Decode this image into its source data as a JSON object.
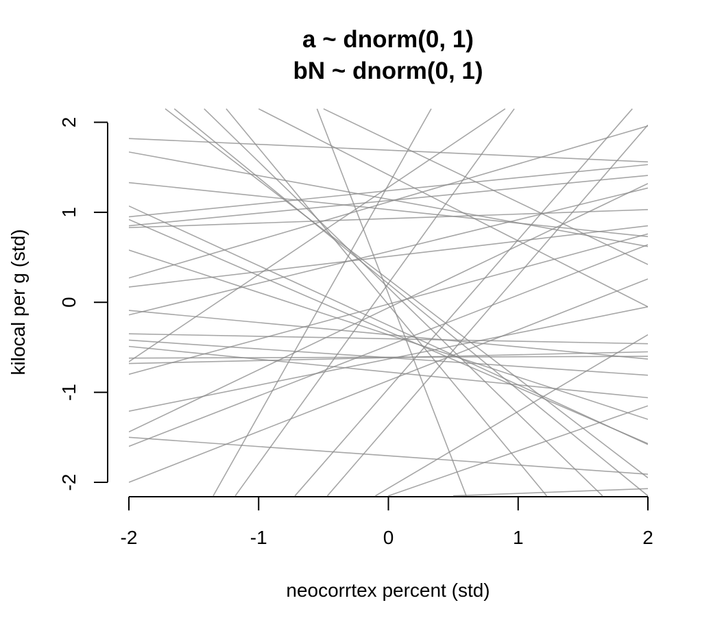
{
  "chart_data": {
    "type": "line",
    "title_lines": [
      "a ~ dnorm(0, 1)",
      "bN ~ dnorm(0, 1)"
    ],
    "xlabel": "neocorrtex percent (std)",
    "ylabel": "kilocal per g (std)",
    "xlim": [
      -2,
      2
    ],
    "ylim": [
      -2.15,
      2.15
    ],
    "x_ticks": [
      "-2",
      "-1",
      "0",
      "1",
      "2"
    ],
    "y_ticks": [
      "-2",
      "-1",
      "0",
      "1",
      "2"
    ],
    "line_color": "#888888",
    "line_opacity": 0.75,
    "grid": false,
    "legend": "none",
    "lines": [
      {
        "x": [
          -2,
          2
        ],
        "y": [
          1.82,
          1.56
        ]
      },
      {
        "x": [
          -2,
          2
        ],
        "y": [
          1.67,
          0.62
        ]
      },
      {
        "x": [
          -2,
          2
        ],
        "y": [
          1.33,
          0.73
        ]
      },
      {
        "x": [
          -2,
          2
        ],
        "y": [
          0.95,
          1.53
        ]
      },
      {
        "x": [
          -2,
          2
        ],
        "y": [
          0.85,
          1.41
        ]
      },
      {
        "x": [
          -2,
          2
        ],
        "y": [
          0.83,
          1.03
        ]
      },
      {
        "x": [
          -2,
          2
        ],
        "y": [
          0.27,
          1.96
        ]
      },
      {
        "x": [
          -2,
          2
        ],
        "y": [
          0.17,
          0.85
        ]
      },
      {
        "x": [
          -2,
          2
        ],
        "y": [
          -0.09,
          -0.63
        ]
      },
      {
        "x": [
          -2,
          2
        ],
        "y": [
          -0.35,
          -0.46
        ]
      },
      {
        "x": [
          -2,
          2
        ],
        "y": [
          -0.42,
          -0.81
        ]
      },
      {
        "x": [
          -2,
          2
        ],
        "y": [
          -0.49,
          -1.06
        ]
      },
      {
        "x": [
          -2,
          2
        ],
        "y": [
          -0.62,
          -0.6
        ]
      },
      {
        "x": [
          -2,
          2
        ],
        "y": [
          -0.68,
          -0.55
        ]
      },
      {
        "x": [
          -2,
          2
        ],
        "y": [
          -0.8,
          0.76
        ]
      },
      {
        "x": [
          -2,
          2
        ],
        "y": [
          -1.21,
          -0.05
        ]
      },
      {
        "x": [
          -2,
          2
        ],
        "y": [
          -1.5,
          -1.91
        ]
      },
      {
        "x": [
          -2,
          2
        ],
        "y": [
          -1.6,
          0.64
        ]
      },
      {
        "x": [
          -2,
          2
        ],
        "y": [
          -1.44,
          1.32
        ]
      },
      {
        "x": [
          -2,
          2
        ],
        "y": [
          -2.0,
          0.26
        ]
      },
      {
        "x": [
          -2,
          2
        ],
        "y": [
          1.07,
          -1.58
        ]
      },
      {
        "x": [
          -2,
          2
        ],
        "y": [
          0.92,
          -1.57
        ]
      },
      {
        "x": [
          -2,
          2
        ],
        "y": [
          0.58,
          -1.3
        ]
      },
      {
        "x": [
          -2,
          2
        ],
        "y": [
          -0.14,
          1.27
        ]
      },
      {
        "x": [
          -0.1,
          2
        ],
        "y": [
          -2.15,
          -0.36
        ]
      },
      {
        "x": [
          0,
          2
        ],
        "y": [
          -2.15,
          -1.15
        ]
      },
      {
        "x": [
          0.5,
          2
        ],
        "y": [
          -2.15,
          -2.07
        ]
      },
      {
        "x": [
          -2,
          0.9
        ],
        "y": [
          -0.66,
          2.15
        ]
      },
      {
        "x": [
          -1.65,
          2
        ],
        "y": [
          2.15,
          -2.15
        ]
      },
      {
        "x": [
          -1.42,
          1.65
        ],
        "y": [
          2.15,
          -2.15
        ]
      },
      {
        "x": [
          -1.25,
          1.22
        ],
        "y": [
          2.15,
          -2.15
        ]
      },
      {
        "x": [
          -0.55,
          0.6
        ],
        "y": [
          2.15,
          -2.15
        ]
      },
      {
        "x": [
          -1.35,
          0.33
        ],
        "y": [
          -2.15,
          2.15
        ]
      },
      {
        "x": [
          -1.18,
          0.97
        ],
        "y": [
          -2.15,
          2.15
        ]
      },
      {
        "x": [
          -0.72,
          1.88
        ],
        "y": [
          -2.15,
          2.15
        ]
      },
      {
        "x": [
          -0.47,
          2
        ],
        "y": [
          -2.15,
          1.97
        ]
      },
      {
        "x": [
          -1.72,
          2
        ],
        "y": [
          2.15,
          -1.95
        ]
      },
      {
        "x": [
          -0.5,
          2
        ],
        "y": [
          2.15,
          0.42
        ]
      },
      {
        "x": [
          -1.0,
          2
        ],
        "y": [
          2.15,
          -0.05
        ]
      }
    ]
  }
}
